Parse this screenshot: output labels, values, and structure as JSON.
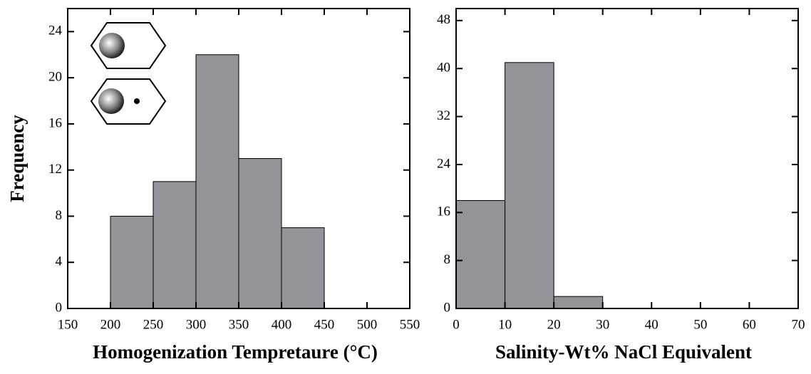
{
  "chart_data": [
    {
      "type": "histogram",
      "x_label": "Homogenization Tempretaure (°C)",
      "y_label": "Frequency",
      "bins": [
        200,
        250,
        300,
        350,
        400,
        450
      ],
      "counts": [
        8,
        11,
        22,
        13,
        7
      ],
      "color": "#939399",
      "xlim": [
        150,
        550
      ],
      "xticks": [
        150,
        200,
        250,
        300,
        350,
        400,
        450,
        500,
        550
      ],
      "ylim": [
        0,
        26
      ],
      "yticks": [
        0,
        4,
        8,
        12,
        16,
        20,
        24
      ]
    },
    {
      "type": "histogram",
      "x_label": "Salinity-Wt% NaCl Equivalent",
      "bins": [
        0,
        10,
        20,
        30
      ],
      "counts": [
        18,
        41,
        2
      ],
      "color": "#939399",
      "xlim": [
        0,
        70
      ],
      "xticks": [
        0,
        10,
        20,
        30,
        40,
        50,
        60,
        70
      ],
      "ylim": [
        0,
        50
      ],
      "yticks": [
        0,
        8,
        16,
        24,
        32,
        40,
        48
      ]
    }
  ]
}
